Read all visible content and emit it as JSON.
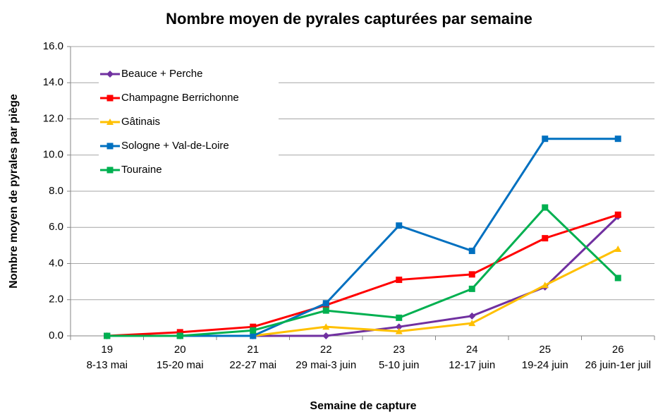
{
  "chart_data": {
    "type": "line",
    "title": "Nombre moyen de pyrales capturées par semaine",
    "x_label": "Semaine de capture",
    "y_label": "Nombre moyen de pyrales par piège",
    "categories": [
      [
        "19",
        "8-13 mai"
      ],
      [
        "20",
        "15-20 mai"
      ],
      [
        "21",
        "22-27 mai"
      ],
      [
        "22",
        "29 mai-3 juin"
      ],
      [
        "23",
        "5-10 juin"
      ],
      [
        "24",
        "12-17 juin"
      ],
      [
        "25",
        "19-24 juin"
      ],
      [
        "26",
        "26 juin-1er juil"
      ]
    ],
    "series": [
      {
        "name": "Beauce + Perche",
        "color": "#7030a0",
        "marker": "diamond",
        "values": [
          0,
          0,
          0,
          0,
          0.5,
          1.1,
          2.7,
          6.6
        ]
      },
      {
        "name": "Champagne Berrichonne",
        "color": "#ff0000",
        "marker": "square",
        "values": [
          0,
          0.2,
          0.5,
          1.7,
          3.1,
          3.4,
          5.4,
          6.7
        ]
      },
      {
        "name": "Gâtinais",
        "color": "#ffc000",
        "marker": "triangle",
        "values": [
          0,
          0,
          0,
          0.5,
          0.25,
          0.7,
          2.8,
          4.8
        ]
      },
      {
        "name": "Sologne + Val-de-Loire",
        "color": "#0070c0",
        "marker": "square",
        "values": [
          0,
          0,
          0,
          1.8,
          6.1,
          4.7,
          10.9,
          10.9
        ]
      },
      {
        "name": "Touraine",
        "color": "#00b050",
        "marker": "square",
        "values": [
          0,
          0,
          0.3,
          1.4,
          1.0,
          2.6,
          7.1,
          3.2
        ]
      }
    ],
    "ylim": [
      0,
      16
    ],
    "yticks": [
      {
        "value": 0,
        "label": "0.0"
      },
      {
        "value": 2,
        "label": "2.0"
      },
      {
        "value": 4,
        "label": "4.0"
      },
      {
        "value": 6,
        "label": "6.0"
      },
      {
        "value": 8,
        "label": "8.0"
      },
      {
        "value": 10,
        "label": "10.0"
      },
      {
        "value": 12,
        "label": "12.0"
      },
      {
        "value": 14,
        "label": "14.0"
      },
      {
        "value": 16,
        "label": "16.0"
      }
    ],
    "grid": true,
    "legend": "upper left"
  }
}
